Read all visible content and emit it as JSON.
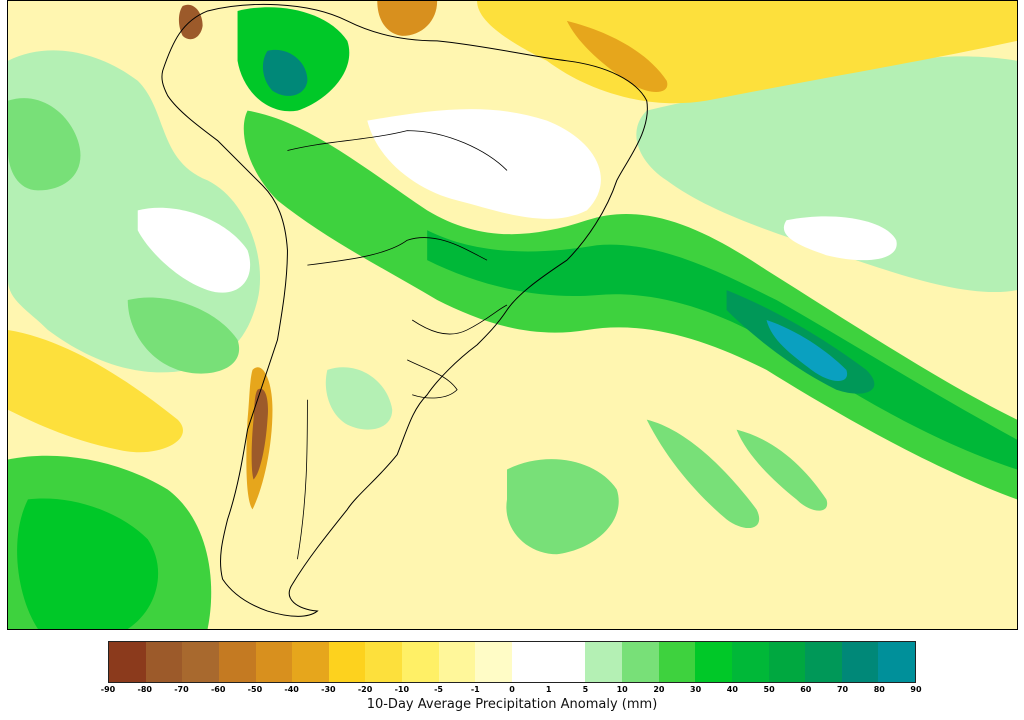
{
  "map": {
    "region": "South America",
    "colors": {
      "brown_dark": "#8b3a1c",
      "brown": "#9c5a2a",
      "orange_dark": "#c47a22",
      "orange": "#e0a020",
      "yellow": "#fddc22",
      "yellow_light": "#fff08a",
      "cream": "#fffbc8",
      "white": "#ffffff",
      "green_pale": "#b4f0b4",
      "green_light": "#78e078",
      "green": "#2dd22d",
      "green_dark": "#00b838",
      "teal": "#00a078",
      "blue_teal": "#0898c0"
    }
  },
  "colorbar": {
    "title": "10-Day Average Precipitation Anomaly (mm)",
    "ticks": [
      "-90",
      "-80",
      "-70",
      "-60",
      "-50",
      "-40",
      "-30",
      "-20",
      "-10",
      "-5",
      "-1",
      "0",
      "1",
      "5",
      "10",
      "20",
      "30",
      "40",
      "50",
      "60",
      "70",
      "80",
      "90"
    ],
    "colors": [
      "#8b3a1c",
      "#9c5a2a",
      "#a8692e",
      "#c47a22",
      "#d8901e",
      "#e6a61c",
      "#fdd21e",
      "#fde03c",
      "#fff066",
      "#fff79a",
      "#fffcc6",
      "#ffffff",
      "#ffffff",
      "#b4f0b4",
      "#78e078",
      "#3ed23e",
      "#00c828",
      "#00b838",
      "#00a840",
      "#009858",
      "#008878",
      "#00909a",
      "#0aa0c0"
    ]
  }
}
